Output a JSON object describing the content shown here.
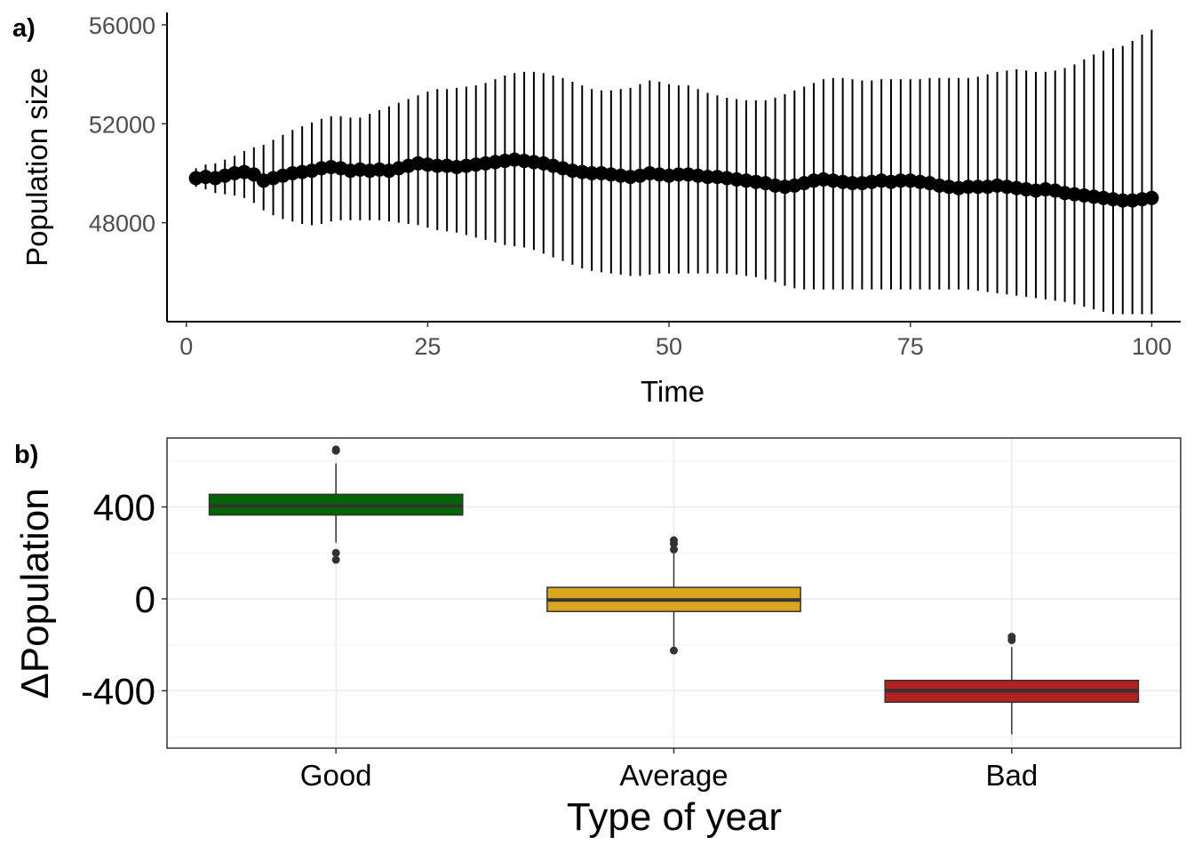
{
  "chart_data": [
    {
      "panel_label": "a)",
      "type": "line",
      "markers": "filled circles with vertical error bars",
      "xlabel": "Time",
      "ylabel": "Population size",
      "x_ticks": [
        "0",
        "25",
        "50",
        "75",
        "100"
      ],
      "y_ticks": [
        "48000",
        "52000",
        "56000"
      ],
      "xlim": [
        -2,
        103
      ],
      "ylim": [
        44000,
        56500
      ],
      "grid": false,
      "x": [
        1,
        2,
        3,
        4,
        5,
        6,
        7,
        8,
        9,
        10,
        11,
        12,
        13,
        14,
        15,
        16,
        17,
        18,
        19,
        20,
        21,
        22,
        23,
        24,
        25,
        26,
        27,
        28,
        29,
        30,
        31,
        32,
        33,
        34,
        35,
        36,
        37,
        38,
        39,
        40,
        41,
        42,
        43,
        44,
        45,
        46,
        47,
        48,
        49,
        50,
        51,
        52,
        53,
        54,
        55,
        56,
        57,
        58,
        59,
        60,
        61,
        62,
        63,
        64,
        65,
        66,
        67,
        68,
        69,
        70,
        71,
        72,
        73,
        74,
        75,
        76,
        77,
        78,
        79,
        80,
        81,
        82,
        83,
        84,
        85,
        86,
        87,
        88,
        89,
        90,
        91,
        92,
        93,
        94,
        95,
        96,
        97,
        98,
        99,
        100
      ],
      "y": [
        49800,
        49850,
        49800,
        49900,
        50000,
        50050,
        49950,
        49700,
        49800,
        49900,
        50000,
        50050,
        50100,
        50200,
        50250,
        50200,
        50100,
        50150,
        50100,
        50150,
        50100,
        50200,
        50300,
        50400,
        50350,
        50300,
        50300,
        50250,
        50300,
        50350,
        50400,
        50450,
        50500,
        50550,
        50500,
        50450,
        50400,
        50300,
        50200,
        50100,
        50050,
        50000,
        50000,
        49950,
        49900,
        49850,
        49900,
        50000,
        49950,
        49900,
        49950,
        49950,
        49900,
        49850,
        49850,
        49800,
        49750,
        49700,
        49650,
        49600,
        49500,
        49450,
        49500,
        49600,
        49700,
        49750,
        49700,
        49650,
        49600,
        49600,
        49650,
        49700,
        49650,
        49700,
        49700,
        49650,
        49600,
        49500,
        49450,
        49400,
        49450,
        49450,
        49450,
        49500,
        49450,
        49400,
        49350,
        49300,
        49350,
        49300,
        49200,
        49150,
        49100,
        49050,
        49000,
        48950,
        48900,
        48900,
        48950,
        49000
      ],
      "error_bars": {
        "upper": [
          50200,
          50350,
          50400,
          50550,
          50700,
          50900,
          51050,
          51150,
          51350,
          51550,
          51750,
          51900,
          52050,
          52200,
          52300,
          52300,
          52250,
          52250,
          52400,
          52550,
          52700,
          52850,
          53000,
          53150,
          53300,
          53400,
          53400,
          53450,
          53500,
          53550,
          53650,
          53800,
          53950,
          54050,
          54100,
          54100,
          54050,
          53950,
          53850,
          53700,
          53550,
          53400,
          53350,
          53350,
          53400,
          53450,
          53600,
          53750,
          53700,
          53600,
          53550,
          53550,
          53400,
          53250,
          53150,
          53050,
          53000,
          52950,
          52950,
          52950,
          53050,
          53200,
          53350,
          53500,
          53650,
          53800,
          53850,
          53850,
          53800,
          53750,
          53750,
          53800,
          53800,
          53800,
          53800,
          53800,
          53850,
          53850,
          53850,
          53850,
          53850,
          53900,
          54000,
          54100,
          54150,
          54200,
          54150,
          54100,
          54100,
          54150,
          54250,
          54400,
          54600,
          54800,
          54950,
          55050,
          55150,
          55350,
          55600,
          55800
        ],
        "lower": [
          49450,
          49350,
          49200,
          49150,
          49100,
          49000,
          48800,
          48500,
          48300,
          48150,
          48050,
          47950,
          47900,
          47950,
          48050,
          48100,
          48100,
          48100,
          48100,
          48100,
          48050,
          48000,
          47950,
          47900,
          47800,
          47700,
          47650,
          47600,
          47500,
          47400,
          47300,
          47200,
          47100,
          47050,
          47000,
          46900,
          46750,
          46600,
          46450,
          46300,
          46150,
          46050,
          46000,
          45950,
          45900,
          45850,
          45850,
          45900,
          45950,
          45950,
          45950,
          45950,
          45950,
          45950,
          45950,
          45950,
          45900,
          45850,
          45800,
          45700,
          45600,
          45450,
          45350,
          45300,
          45300,
          45300,
          45300,
          45300,
          45300,
          45300,
          45300,
          45300,
          45300,
          45300,
          45300,
          45300,
          45300,
          45300,
          45300,
          45300,
          45300,
          45250,
          45200,
          45150,
          45100,
          45050,
          45000,
          44950,
          44900,
          44850,
          44800,
          44700,
          44600,
          44500,
          44400,
          44300,
          44300,
          44300,
          44300,
          44300
        ]
      },
      "colors": {
        "line": "#000000",
        "points": "#000000"
      }
    },
    {
      "panel_label": "b)",
      "type": "box",
      "xlabel": "Type of year",
      "ylabel": "ΔPopulation",
      "categories": [
        "Good",
        "Average",
        "Bad"
      ],
      "y_ticks": [
        "-400",
        "0",
        "400"
      ],
      "ylim": [
        -650,
        700
      ],
      "grid": true,
      "boxes": [
        {
          "name": "Good",
          "q1": 365,
          "median": 405,
          "q3": 455,
          "whisker_low": 245,
          "whisker_high": 590,
          "outliers": [
            645,
            650,
            200,
            170
          ],
          "fill": "#006400"
        },
        {
          "name": "Average",
          "q1": -55,
          "median": -5,
          "q3": 50,
          "whisker_low": -220,
          "whisker_high": 200,
          "outliers": [
            255,
            240,
            215,
            -225
          ],
          "fill": "#DAA520"
        },
        {
          "name": "Bad",
          "q1": -450,
          "median": -400,
          "q3": -355,
          "whisker_low": -590,
          "whisker_high": -210,
          "outliers": [
            -165,
            -180
          ],
          "fill": "#B22222"
        }
      ]
    }
  ]
}
